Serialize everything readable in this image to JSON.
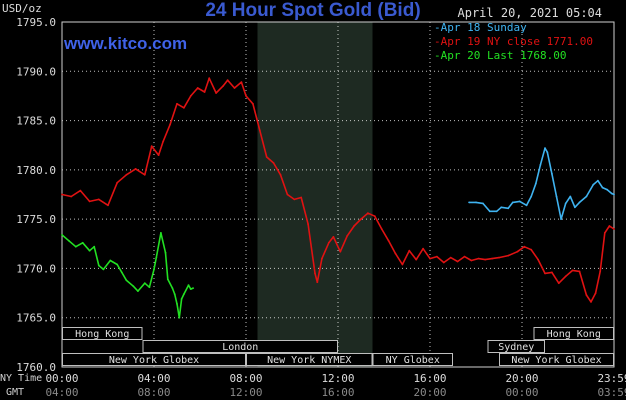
{
  "header": {
    "unit": "USD/oz",
    "title": "24 Hour Spot Gold (Bid)",
    "date": "April 20, 2021 05:04",
    "site": "www.kitco.com"
  },
  "left_labels": {
    "ny_time": "NY Time",
    "gmt": "GMT"
  },
  "colors": {
    "blue": "#3fb3f0",
    "red": "#e01212",
    "green": "#22e022",
    "grid": "#ffffff",
    "title": "#3a5ad0"
  },
  "sessions": {
    "row1": [
      {
        "label": "Hong Kong",
        "x0": 0,
        "x1": 3.5
      },
      {
        "label": "Hong Kong",
        "x0": 20.5,
        "x1": 24
      }
    ],
    "row2": [
      {
        "label": "London",
        "x0": 3.5,
        "x1": 12
      },
      {
        "label": "Sydney",
        "x0": 18.5,
        "x1": 21
      }
    ],
    "row3": [
      {
        "label": "New York Globex",
        "x0": 0,
        "x1": 8
      },
      {
        "label": "New York NYMEX",
        "x0": 8,
        "x1": 13.5
      },
      {
        "label": "NY Globex",
        "x0": 13.5,
        "x1": 17
      },
      {
        "label": "New York Globex",
        "x0": 19,
        "x1": 24
      }
    ]
  },
  "chart_data": {
    "type": "line",
    "title": "24 Hour Spot Gold (Bid)",
    "ylabel": "USD/oz",
    "ylim": [
      1760,
      1795
    ],
    "yticks": [
      "1760.0",
      "1765.0",
      "1770.0",
      "1775.0",
      "1780.0",
      "1785.0",
      "1790.0",
      "1795.0"
    ],
    "xlim": [
      0,
      24
    ],
    "xtick_hours": [
      0,
      4,
      8,
      12,
      16,
      20,
      24
    ],
    "xticks_ny": [
      "00:00",
      "04:00",
      "08:00",
      "12:00",
      "16:00",
      "20:00",
      "23:59"
    ],
    "xticks_gmt": [
      "04:00",
      "08:00",
      "12:00",
      "16:00",
      "20:00",
      "00:00",
      "03:59"
    ],
    "shaded_region": [
      8.5,
      13.5
    ],
    "grid": true,
    "legend_position": "top-right",
    "series": [
      {
        "name": "Apr 18 Sunday",
        "color": "#3fb3f0",
        "points": [
          [
            17.7,
            1776.7
          ],
          [
            18.0,
            1776.7
          ],
          [
            18.3,
            1776.6
          ],
          [
            18.6,
            1775.8
          ],
          [
            18.9,
            1775.8
          ],
          [
            19.1,
            1776.2
          ],
          [
            19.4,
            1776.1
          ],
          [
            19.6,
            1776.7
          ],
          [
            19.9,
            1776.8
          ],
          [
            20.2,
            1776.4
          ],
          [
            20.4,
            1777.3
          ],
          [
            20.6,
            1778.6
          ],
          [
            20.8,
            1780.5
          ],
          [
            21.0,
            1782.2
          ],
          [
            21.1,
            1781.8
          ],
          [
            21.3,
            1779.6
          ],
          [
            21.5,
            1777.3
          ],
          [
            21.7,
            1775.0
          ],
          [
            21.9,
            1776.6
          ],
          [
            22.1,
            1777.3
          ],
          [
            22.3,
            1776.2
          ],
          [
            22.5,
            1776.7
          ],
          [
            22.8,
            1777.3
          ],
          [
            23.1,
            1778.5
          ],
          [
            23.3,
            1778.9
          ],
          [
            23.5,
            1778.2
          ],
          [
            23.7,
            1778.0
          ],
          [
            23.9,
            1777.6
          ],
          [
            24.0,
            1777.5
          ]
        ]
      },
      {
        "name": "Apr 19 NY close 1771.00",
        "color": "#e01212",
        "points": [
          [
            0.0,
            1777.5
          ],
          [
            0.4,
            1777.3
          ],
          [
            0.8,
            1777.9
          ],
          [
            1.2,
            1776.8
          ],
          [
            1.6,
            1777.0
          ],
          [
            2.0,
            1776.4
          ],
          [
            2.4,
            1778.7
          ],
          [
            2.8,
            1779.5
          ],
          [
            3.2,
            1780.1
          ],
          [
            3.6,
            1779.5
          ],
          [
            3.9,
            1782.4
          ],
          [
            4.2,
            1781.5
          ],
          [
            4.4,
            1782.9
          ],
          [
            4.7,
            1784.6
          ],
          [
            5.0,
            1786.7
          ],
          [
            5.3,
            1786.3
          ],
          [
            5.6,
            1787.5
          ],
          [
            5.9,
            1788.3
          ],
          [
            6.2,
            1787.9
          ],
          [
            6.4,
            1789.3
          ],
          [
            6.7,
            1787.8
          ],
          [
            7.0,
            1788.5
          ],
          [
            7.2,
            1789.1
          ],
          [
            7.5,
            1788.3
          ],
          [
            7.8,
            1788.9
          ],
          [
            8.0,
            1787.5
          ],
          [
            8.3,
            1786.7
          ],
          [
            8.6,
            1784.0
          ],
          [
            8.9,
            1781.3
          ],
          [
            9.2,
            1780.7
          ],
          [
            9.5,
            1779.5
          ],
          [
            9.8,
            1777.5
          ],
          [
            10.1,
            1777.0
          ],
          [
            10.4,
            1777.2
          ],
          [
            10.7,
            1774.5
          ],
          [
            11.0,
            1769.5
          ],
          [
            11.1,
            1768.6
          ],
          [
            11.3,
            1771.0
          ],
          [
            11.6,
            1772.6
          ],
          [
            11.8,
            1773.2
          ],
          [
            12.1,
            1771.7
          ],
          [
            12.4,
            1773.3
          ],
          [
            12.7,
            1774.3
          ],
          [
            13.0,
            1775.0
          ],
          [
            13.3,
            1775.6
          ],
          [
            13.6,
            1775.3
          ],
          [
            13.9,
            1774.0
          ],
          [
            14.2,
            1772.8
          ],
          [
            14.5,
            1771.5
          ],
          [
            14.8,
            1770.4
          ],
          [
            15.1,
            1771.8
          ],
          [
            15.4,
            1770.9
          ],
          [
            15.7,
            1772.0
          ],
          [
            16.0,
            1771.0
          ],
          [
            16.3,
            1771.2
          ],
          [
            16.6,
            1770.6
          ],
          [
            16.9,
            1771.1
          ],
          [
            17.2,
            1770.7
          ],
          [
            17.5,
            1771.2
          ],
          [
            17.8,
            1770.8
          ],
          [
            18.1,
            1771.0
          ],
          [
            18.4,
            1770.9
          ],
          [
            18.7,
            1771.0
          ],
          [
            19.0,
            1771.1
          ],
          [
            19.4,
            1771.3
          ],
          [
            19.8,
            1771.7
          ],
          [
            20.1,
            1772.2
          ],
          [
            20.4,
            1771.9
          ],
          [
            20.7,
            1770.9
          ],
          [
            21.0,
            1769.5
          ],
          [
            21.3,
            1769.6
          ],
          [
            21.6,
            1768.5
          ],
          [
            21.9,
            1769.2
          ],
          [
            22.2,
            1769.8
          ],
          [
            22.5,
            1769.7
          ],
          [
            22.8,
            1767.3
          ],
          [
            23.0,
            1766.6
          ],
          [
            23.2,
            1767.5
          ],
          [
            23.4,
            1769.7
          ],
          [
            23.6,
            1773.6
          ],
          [
            23.8,
            1774.3
          ],
          [
            24.0,
            1774.0
          ]
        ]
      },
      {
        "name": "Apr 20 Last 1768.00",
        "color": "#22e022",
        "points": [
          [
            0.0,
            1773.4
          ],
          [
            0.3,
            1772.8
          ],
          [
            0.6,
            1772.2
          ],
          [
            0.9,
            1772.6
          ],
          [
            1.2,
            1771.8
          ],
          [
            1.4,
            1772.2
          ],
          [
            1.6,
            1770.3
          ],
          [
            1.8,
            1769.9
          ],
          [
            2.1,
            1770.8
          ],
          [
            2.4,
            1770.4
          ],
          [
            2.6,
            1769.6
          ],
          [
            2.8,
            1768.8
          ],
          [
            3.1,
            1768.2
          ],
          [
            3.3,
            1767.7
          ],
          [
            3.6,
            1768.5
          ],
          [
            3.8,
            1768.1
          ],
          [
            4.0,
            1769.9
          ],
          [
            4.1,
            1771.1
          ],
          [
            4.3,
            1773.6
          ],
          [
            4.5,
            1771.6
          ],
          [
            4.6,
            1768.9
          ],
          [
            4.8,
            1768.0
          ],
          [
            4.9,
            1767.4
          ],
          [
            5.0,
            1766.4
          ],
          [
            5.1,
            1765.0
          ],
          [
            5.2,
            1766.9
          ],
          [
            5.3,
            1767.4
          ],
          [
            5.5,
            1768.3
          ],
          [
            5.6,
            1767.9
          ],
          [
            5.7,
            1768.0
          ]
        ]
      }
    ]
  }
}
